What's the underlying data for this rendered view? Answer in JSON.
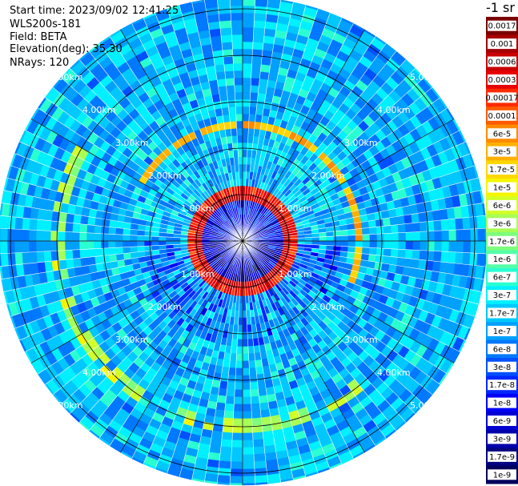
{
  "header": {
    "start_time": "Start time: 2023/09/02 12:41:25",
    "device": "WLS200s-181",
    "field": "Field: BETA",
    "elevation": "Elevation(deg): 35.30",
    "nrays": "NRays: 120"
  },
  "colorbar": {
    "unit": "-1 sr",
    "labels": [
      "0.0017",
      "0.001",
      "0.0006",
      "0.0003",
      "0.00017",
      "0.0001",
      "6e-5",
      "3e-5",
      "1.7e-5",
      "1e-5",
      "6e-6",
      "3e-6",
      "1.7e-6",
      "1e-6",
      "6e-7",
      "3e-7",
      "1.7e-7",
      "1e-7",
      "6e-8",
      "3e-8",
      "1.7e-8",
      "1e-8",
      "6e-9",
      "3e-9",
      "1.7e-9",
      "1e-9"
    ],
    "colors": [
      "#7a0000",
      "#a50000",
      "#c80000",
      "#e60000",
      "#ff2a00",
      "#ff5a00",
      "#ff8a00",
      "#ffb000",
      "#ffd700",
      "#f5f500",
      "#d2ff2a",
      "#a8ff55",
      "#7dff7d",
      "#55ffa8",
      "#2affd2",
      "#00f0ff",
      "#00c8ff",
      "#00a0ff",
      "#0078ff",
      "#0050ff",
      "#0028ff",
      "#0000f5",
      "#0000d2",
      "#0000aa",
      "#000082",
      "#00005a"
    ]
  },
  "chart_data": {
    "type": "heatmap",
    "projection": "polar (PPI scan)",
    "quantity": "BETA",
    "rays": 120,
    "elevation_deg": 35.3,
    "range_rings_km": [
      1,
      2,
      3,
      4,
      5
    ],
    "range_labels": [
      "1.00km",
      "2.00km",
      "3.00km",
      "4.00km",
      "5.00km"
    ],
    "colorscale": "log",
    "color_range": [
      1e-09,
      0.0017
    ],
    "features": [
      {
        "range_km": 1.0,
        "beta": 0.001,
        "note": "continuous high-backscatter ring around the lidar"
      },
      {
        "range_km": 2.5,
        "beta": 3e-05,
        "note": "partial arc, northern to eastern sector"
      },
      {
        "range_km": 4.0,
        "beta": 1e-05,
        "note": "partial arcs, western and southern sectors"
      }
    ]
  }
}
